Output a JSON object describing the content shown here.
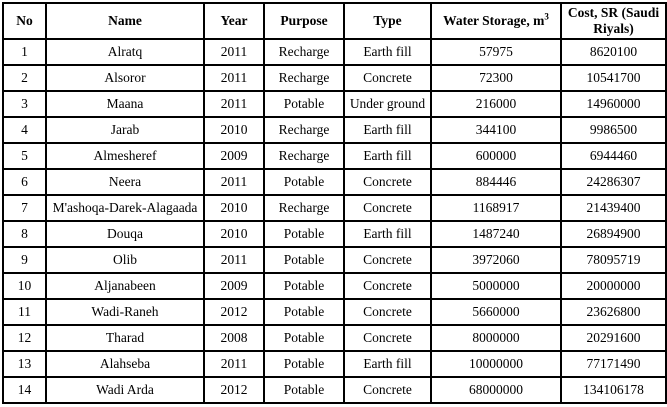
{
  "table": {
    "columns": [
      {
        "label": "No",
        "sup": ""
      },
      {
        "label": "Name",
        "sup": ""
      },
      {
        "label": "Year",
        "sup": ""
      },
      {
        "label": "Purpose",
        "sup": ""
      },
      {
        "label": "Type",
        "sup": ""
      },
      {
        "label": "Water Storage, m",
        "sup": "3"
      },
      {
        "label": "Cost, SR (Saudi Riyals)",
        "sup": ""
      }
    ],
    "rows": [
      [
        "1",
        "Alratq",
        "2011",
        "Recharge",
        "Earth fill",
        "57975",
        "8620100"
      ],
      [
        "2",
        "Alsoror",
        "2011",
        "Recharge",
        "Concrete",
        "72300",
        "10541700"
      ],
      [
        "3",
        "Maana",
        "2011",
        "Potable",
        "Under ground",
        "216000",
        "14960000"
      ],
      [
        "4",
        "Jarab",
        "2010",
        "Recharge",
        "Earth fill",
        "344100",
        "9986500"
      ],
      [
        "5",
        "Almesheref",
        "2009",
        "Recharge",
        "Earth fill",
        "600000",
        "6944460"
      ],
      [
        "6",
        "Neera",
        "2011",
        "Potable",
        "Concrete",
        "884446",
        "24286307"
      ],
      [
        "7",
        "M'ashoqa-Darek-Alagaada",
        "2010",
        "Recharge",
        "Concrete",
        "1168917",
        "21439400"
      ],
      [
        "8",
        "Douqa",
        "2010",
        "Potable",
        "Earth fill",
        "1487240",
        "26894900"
      ],
      [
        "9",
        "Olib",
        "2011",
        "Potable",
        "Concrete",
        "3972060",
        "78095719"
      ],
      [
        "10",
        "Aljanabeen",
        "2009",
        "Potable",
        "Concrete",
        "5000000",
        "20000000"
      ],
      [
        "11",
        "Wadi-Raneh",
        "2012",
        "Potable",
        "Concrete",
        "5660000",
        "23626800"
      ],
      [
        "12",
        "Tharad",
        "2008",
        "Potable",
        "Concrete",
        "8000000",
        "20291600"
      ],
      [
        "13",
        "Alahseba",
        "2011",
        "Potable",
        "Earth fill",
        "10000000",
        "77171490"
      ],
      [
        "14",
        "Wadi Arda",
        "2012",
        "Potable",
        "Concrete",
        "68000000",
        "134106178"
      ]
    ],
    "colors": {
      "border": "#000000",
      "text": "#000000",
      "background": "#ffffff"
    }
  }
}
